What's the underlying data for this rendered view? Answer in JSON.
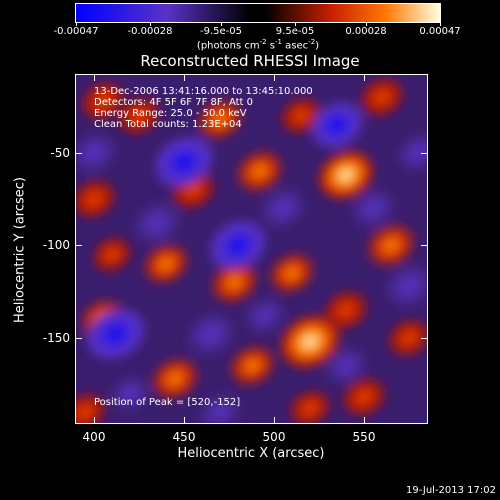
{
  "colorbar": {
    "tick_labels": [
      "-0.00047",
      "-0.00028",
      "-9.5e-05",
      "9.5e-05",
      "0.00028",
      "0.00047"
    ],
    "tick_values": [
      -0.00047,
      -0.00028,
      -9.5e-05,
      9.5e-05,
      0.00028,
      0.00047
    ],
    "units_main": "(photons cm",
    "units_sup1": "-2",
    "units_mid1": " s",
    "units_sup2": "-1",
    "units_mid2": " asec",
    "units_sup3": "-2",
    "units_end": ")"
  },
  "title": "Reconstructed RHESSI Image",
  "annotations": {
    "time_range": "13-Dec-2006 13:41:16.000 to 13:45:10.000",
    "detectors": "Detectors: 4F 5F 6F 7F 8F, Att 0",
    "energy_range": "Energy Range: 25.0 - 50.0 keV",
    "clean": "Clean    Total counts: 1.23E+04",
    "peak": "Position of Peak = [520,-152]"
  },
  "axes": {
    "xlabel": "Heliocentric X (arcsec)",
    "ylabel": "Heliocentric Y (arcsec)",
    "x_ticks": [
      "400",
      "450",
      "500",
      "550"
    ],
    "x_tick_values": [
      400,
      450,
      500,
      550
    ],
    "y_ticks": [
      "-50",
      "-100",
      "-150"
    ],
    "y_tick_values": [
      -50,
      -100,
      -150
    ],
    "xlim": [
      390,
      585
    ],
    "ylim": [
      -196,
      -8
    ]
  },
  "timestamp": "19-Jul-2013 17:02",
  "colors": {
    "background": "#000000",
    "foreground": "#ffffff",
    "colormap": [
      "#0000ff",
      "#5a32c8",
      "#000000",
      "#c81e00",
      "#ff7800",
      "#ffff96"
    ]
  },
  "blobs": [
    {
      "x": 520,
      "y": -152,
      "v": 1.0
    },
    {
      "x": 540,
      "y": -62,
      "v": 0.85
    },
    {
      "x": 492,
      "y": -60,
      "v": 0.6
    },
    {
      "x": 455,
      "y": -70,
      "v": 0.5
    },
    {
      "x": 470,
      "y": -32,
      "v": 0.55
    },
    {
      "x": 425,
      "y": -30,
      "v": 0.45
    },
    {
      "x": 405,
      "y": -22,
      "v": 0.5
    },
    {
      "x": 400,
      "y": -75,
      "v": 0.5
    },
    {
      "x": 440,
      "y": -110,
      "v": 0.55
    },
    {
      "x": 478,
      "y": -120,
      "v": 0.6
    },
    {
      "x": 510,
      "y": -115,
      "v": 0.55
    },
    {
      "x": 540,
      "y": -135,
      "v": 0.5
    },
    {
      "x": 565,
      "y": -100,
      "v": 0.65
    },
    {
      "x": 560,
      "y": -20,
      "v": 0.5
    },
    {
      "x": 405,
      "y": -140,
      "v": 0.55
    },
    {
      "x": 445,
      "y": -172,
      "v": 0.6
    },
    {
      "x": 488,
      "y": -165,
      "v": 0.55
    },
    {
      "x": 550,
      "y": -182,
      "v": 0.5
    },
    {
      "x": 575,
      "y": -150,
      "v": 0.45
    },
    {
      "x": 515,
      "y": -30,
      "v": 0.4
    },
    {
      "x": 395,
      "y": -190,
      "v": 0.45
    },
    {
      "x": 410,
      "y": -105,
      "v": 0.35
    },
    {
      "x": 520,
      "y": -188,
      "v": 0.4
    },
    {
      "x": 450,
      "y": -55,
      "v": -0.9
    },
    {
      "x": 412,
      "y": -148,
      "v": -0.9
    },
    {
      "x": 480,
      "y": -100,
      "v": -0.85
    },
    {
      "x": 535,
      "y": -35,
      "v": -0.7
    },
    {
      "x": 505,
      "y": -80,
      "v": -0.5
    },
    {
      "x": 575,
      "y": -122,
      "v": -0.6
    },
    {
      "x": 465,
      "y": -148,
      "v": -0.6
    },
    {
      "x": 435,
      "y": -88,
      "v": -0.55
    },
    {
      "x": 400,
      "y": -50,
      "v": -0.5
    },
    {
      "x": 540,
      "y": -165,
      "v": -0.4
    },
    {
      "x": 555,
      "y": -80,
      "v": -0.45
    },
    {
      "x": 495,
      "y": -138,
      "v": -0.35
    },
    {
      "x": 470,
      "y": -190,
      "v": -0.4
    },
    {
      "x": 580,
      "y": -50,
      "v": -0.4
    },
    {
      "x": 420,
      "y": -180,
      "v": -0.3
    }
  ]
}
